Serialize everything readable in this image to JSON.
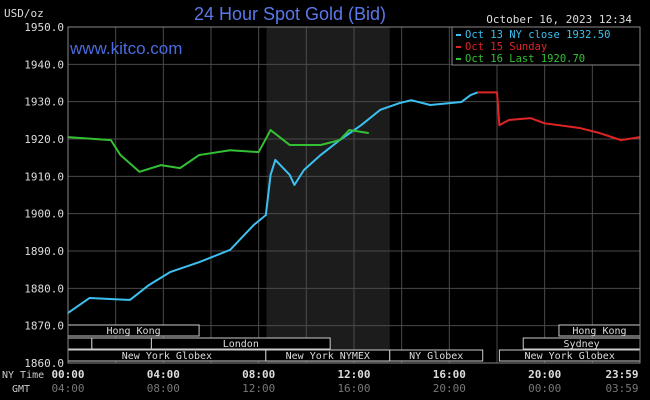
{
  "chart_data": {
    "type": "line",
    "title": "24 Hour Spot Gold (Bid)",
    "ylabel": "USD/oz",
    "timestamp": "October 16, 2023 12:34",
    "watermark": "www.kitco.com",
    "ylim": [
      1860,
      1950
    ],
    "yticks": [
      "1950.0",
      "1940.0",
      "1930.0",
      "1920.0",
      "1910.0",
      "1900.0",
      "1890.0",
      "1880.0",
      "1870.0",
      "1860.0"
    ],
    "xlim_hours": [
      0,
      24
    ],
    "x_row_label": "NY Time",
    "gmt_row_label": "GMT",
    "xticks": [
      {
        "h": 0,
        "ny": "00:00",
        "gmt": "04:00"
      },
      {
        "h": 4,
        "ny": "04:00",
        "gmt": "08:00"
      },
      {
        "h": 8,
        "ny": "08:00",
        "gmt": "12:00"
      },
      {
        "h": 12,
        "ny": "12:00",
        "gmt": "16:00"
      },
      {
        "h": 16,
        "ny": "16:00",
        "gmt": "20:00"
      },
      {
        "h": 20,
        "ny": "20:00",
        "gmt": "00:00"
      },
      {
        "h": 24,
        "ny": "23:59",
        "gmt": "03:59"
      }
    ],
    "nymex_shade_hours": [
      8.33,
      13.5
    ],
    "legend": "top-right",
    "series": [
      {
        "name": "Oct 13 NY close 1932.50",
        "color": "#3cc0f0",
        "points": [
          [
            0,
            1873.4
          ],
          [
            0.9,
            1877.4
          ],
          [
            2.6,
            1876.9
          ],
          [
            3.4,
            1880.9
          ],
          [
            4.3,
            1884.4
          ],
          [
            5.5,
            1887
          ],
          [
            6.8,
            1890.3
          ],
          [
            7.8,
            1897
          ],
          [
            8.3,
            1899.6
          ],
          [
            8.5,
            1910.4
          ],
          [
            8.7,
            1914.4
          ],
          [
            9.3,
            1910.4
          ],
          [
            9.5,
            1907.7
          ],
          [
            9.9,
            1911.7
          ],
          [
            10.6,
            1915.7
          ],
          [
            11.4,
            1919.7
          ],
          [
            12.3,
            1923.7
          ],
          [
            13.1,
            1927.8
          ],
          [
            13.9,
            1929.6
          ],
          [
            14.4,
            1930.4
          ],
          [
            15.2,
            1929.1
          ],
          [
            16.5,
            1929.9
          ],
          [
            16.9,
            1931.8
          ],
          [
            17.2,
            1932.5
          ]
        ]
      },
      {
        "name": "Oct 15 Sunday",
        "color": "#e02424",
        "points": [
          [
            17.2,
            1932.5
          ],
          [
            18,
            1932.5
          ],
          [
            18.1,
            1923.7
          ],
          [
            18.5,
            1925.1
          ],
          [
            19.4,
            1925.6
          ],
          [
            20,
            1924.2
          ],
          [
            20.6,
            1923.7
          ],
          [
            21.5,
            1922.9
          ],
          [
            22.3,
            1921.6
          ],
          [
            23.2,
            1919.7
          ],
          [
            24,
            1920.5
          ]
        ]
      },
      {
        "name": "Oct 16 Last 1920.70",
        "color": "#34c034",
        "points": [
          [
            0,
            1920.5
          ],
          [
            1.8,
            1919.7
          ],
          [
            2.2,
            1915.7
          ],
          [
            3.0,
            1911.2
          ],
          [
            3.9,
            1913
          ],
          [
            4.7,
            1912.2
          ],
          [
            5.5,
            1915.7
          ],
          [
            6.8,
            1917
          ],
          [
            8.0,
            1916.5
          ],
          [
            8.5,
            1922.4
          ],
          [
            9.3,
            1918.4
          ],
          [
            10.6,
            1918.4
          ],
          [
            11.4,
            1919.7
          ],
          [
            11.8,
            1922.4
          ],
          [
            12.6,
            1921.6
          ]
        ]
      }
    ],
    "sessions": [
      {
        "label": "Hong Kong",
        "row": 0,
        "start": 0,
        "end": 5.5
      },
      {
        "label": "Hong Kong",
        "row": 0,
        "start": 20.6,
        "end": 24
      },
      {
        "label": "",
        "row": 1,
        "start": 0,
        "end": 1
      },
      {
        "label": "",
        "row": 1,
        "start": 1,
        "end": 3.5
      },
      {
        "label": "London",
        "row": 1,
        "start": 3.5,
        "end": 11
      },
      {
        "label": "Sydney",
        "row": 1,
        "start": 19.1,
        "end": 24
      },
      {
        "label": "New York Globex",
        "row": 2,
        "start": 0,
        "end": 8.3
      },
      {
        "label": "New York NYMEX",
        "row": 2,
        "start": 8.3,
        "end": 13.5
      },
      {
        "label": "NY Globex",
        "row": 2,
        "start": 13.5,
        "end": 17.4
      },
      {
        "label": "New York Globex",
        "row": 2,
        "start": 18.1,
        "end": 24
      }
    ]
  }
}
